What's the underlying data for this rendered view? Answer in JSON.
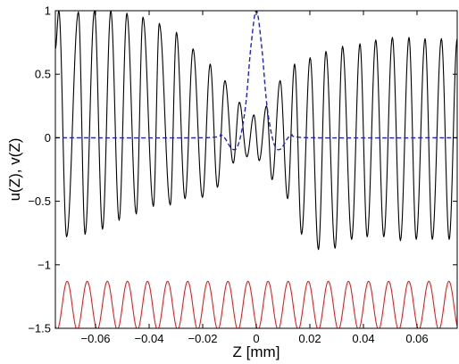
{
  "chart_data": {
    "type": "line",
    "title": "",
    "xlabel": "Z [mm]",
    "ylabel": "u(Z), v(Z)",
    "xlim": [
      -0.075,
      0.075
    ],
    "ylim": [
      -1.5,
      1
    ],
    "x_ticks": [
      -0.06,
      -0.04,
      -0.02,
      0,
      0.02,
      0.04,
      0.06
    ],
    "x_tick_labels": [
      "−0.06",
      "−0.04",
      "−0.02",
      "0",
      "0.02",
      "0.04",
      "0.06"
    ],
    "y_ticks": [
      1,
      0.5,
      0,
      -0.5,
      -1,
      -1.5
    ],
    "y_tick_labels": [
      "1",
      "0.5",
      "0",
      "−0.5",
      "−1",
      "−1.5"
    ],
    "grid": false,
    "legend": "none",
    "series": [
      {
        "id": "u",
        "color": "#000000",
        "style": "solid",
        "x": [
          -0.075,
          -0.0737,
          -0.0708,
          -0.0664,
          -0.0639,
          -0.0604,
          -0.0574,
          -0.0543,
          -0.0512,
          -0.0483,
          -0.0448,
          -0.0423,
          -0.0384,
          -0.0362,
          -0.0321,
          -0.0298,
          -0.0266,
          -0.0236,
          -0.0201,
          -0.0172,
          -0.0145,
          -0.0117,
          -0.0086,
          -0.0063,
          -0.0035,
          -0.0009,
          0.0011,
          0.0038,
          0.0059,
          0.0089,
          0.0117,
          0.0143,
          0.0169,
          0.0201,
          0.0232,
          0.026,
          0.0294,
          0.0322,
          0.0356,
          0.0387,
          0.0414,
          0.0446,
          0.0476,
          0.0508,
          0.0538,
          0.057,
          0.0597,
          0.063,
          0.0657,
          0.0691,
          0.072,
          0.075
        ],
        "y": [
          0.7,
          1.0,
          -0.78,
          0.99,
          -0.76,
          1.0,
          -0.72,
          1.0,
          -0.65,
          0.98,
          -0.6,
          0.95,
          -0.54,
          0.9,
          -0.53,
          0.83,
          -0.48,
          0.7,
          -0.47,
          0.58,
          -0.39,
          0.45,
          -0.2,
          0.28,
          -0.15,
          0.18,
          -0.18,
          0.25,
          -0.33,
          0.45,
          -0.48,
          0.58,
          -0.76,
          0.63,
          -0.88,
          0.68,
          -0.87,
          0.72,
          -0.8,
          0.74,
          -0.78,
          0.77,
          -0.78,
          0.79,
          -0.81,
          0.79,
          -0.8,
          0.78,
          -0.8,
          0.78,
          -0.8,
          0.78
        ]
      },
      {
        "id": "v",
        "color": "#1f1fd6",
        "style": "dashed",
        "x": [
          -0.075,
          -0.02,
          -0.013,
          -0.009,
          -0.0065,
          -0.004,
          -0.002,
          0,
          0.002,
          0.004,
          0.0065,
          0.009,
          0.013,
          0.02,
          0.075
        ],
        "y": [
          0,
          0,
          0.02,
          -0.09,
          -0.04,
          0.25,
          0.72,
          1.0,
          0.72,
          0.25,
          -0.04,
          -0.09,
          0.02,
          0,
          0
        ]
      },
      {
        "id": "red-oscillation",
        "color": "#dd2222",
        "style": "solid",
        "baseline": -1.32,
        "amplitude": 0.19,
        "period": 0.0075,
        "peak_x": -0.0706
      }
    ]
  }
}
